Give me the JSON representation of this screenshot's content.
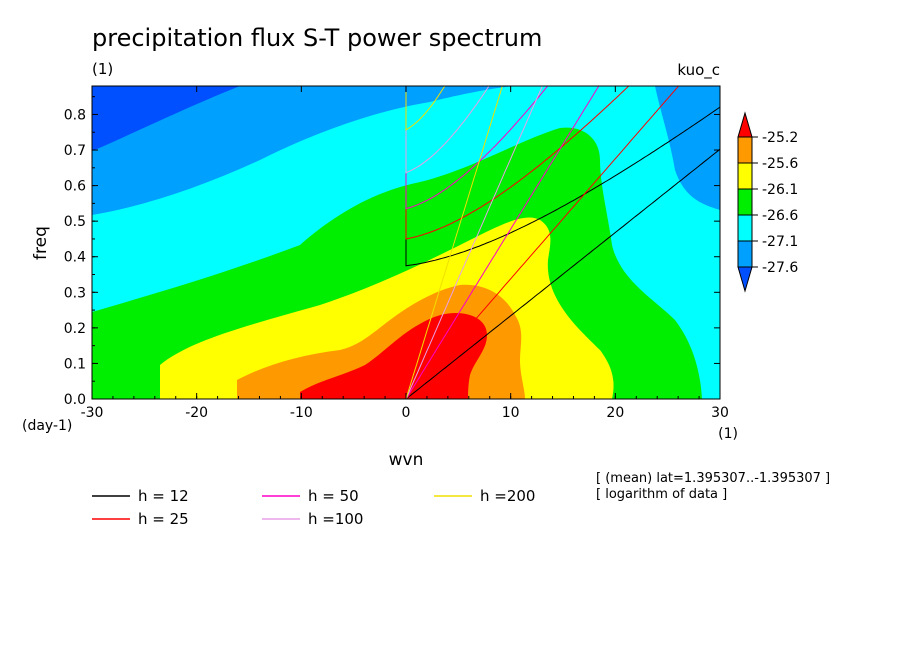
{
  "chart_data": {
    "type": "heatmap",
    "title": "precipitation flux S-T power spectrum",
    "subtitle_left": "(1)",
    "subtitle_right": "kuo_c",
    "xlabel": "wvn",
    "ylabel": "freq",
    "x_unit_label": "(1)",
    "y_unit_label": "(day-1)",
    "xlim": [
      -30,
      30
    ],
    "ylim": [
      0,
      0.88
    ],
    "x_ticks": [
      -30,
      -20,
      -10,
      0,
      10,
      20,
      30
    ],
    "x_tick_labels": [
      "-30",
      "-20",
      "-10",
      "0",
      "10",
      "20",
      "30"
    ],
    "y_ticks": [
      0,
      0.1,
      0.2,
      0.3,
      0.4,
      0.5,
      0.6,
      0.7,
      0.8
    ],
    "y_tick_labels": [
      "0.0",
      "0.1",
      "0.2",
      "0.3",
      "0.4",
      "0.5",
      "0.6",
      "0.7",
      "0.8"
    ],
    "colorbar": {
      "levels": [
        "-25.2",
        "-25.6",
        "-26.1",
        "-26.6",
        "-27.1",
        "-27.6"
      ],
      "colors": [
        "#ff0000",
        "#ff9900",
        "#ffff00",
        "#00ee00",
        "#00ffff",
        "#00a0ff",
        "#0050ff"
      ]
    },
    "fill_colors": {
      "lvl1": "#0050ff",
      "lvl2": "#00a0ff",
      "lvl3": "#00ffff",
      "lvl4": "#00ee00",
      "lvl5": "#ffff00",
      "lvl6": "#ff9900",
      "lvl7": "#ff0000"
    },
    "dispersion_curves": [
      {
        "name": "h = 12",
        "h": 12,
        "color": "#000000"
      },
      {
        "name": "h = 25",
        "h": 25,
        "color": "#ff0000"
      },
      {
        "name": "h = 50",
        "h": 50,
        "color": "#ff00c8"
      },
      {
        "name": "h =100",
        "h": 100,
        "color": "#e8a0e8"
      },
      {
        "name": "h =200",
        "h": 200,
        "color": "#f0e000"
      }
    ],
    "annotations": [
      "[ (mean) lat=1.395307..-1.395307 ]",
      "[ logarithm of data ]"
    ]
  }
}
